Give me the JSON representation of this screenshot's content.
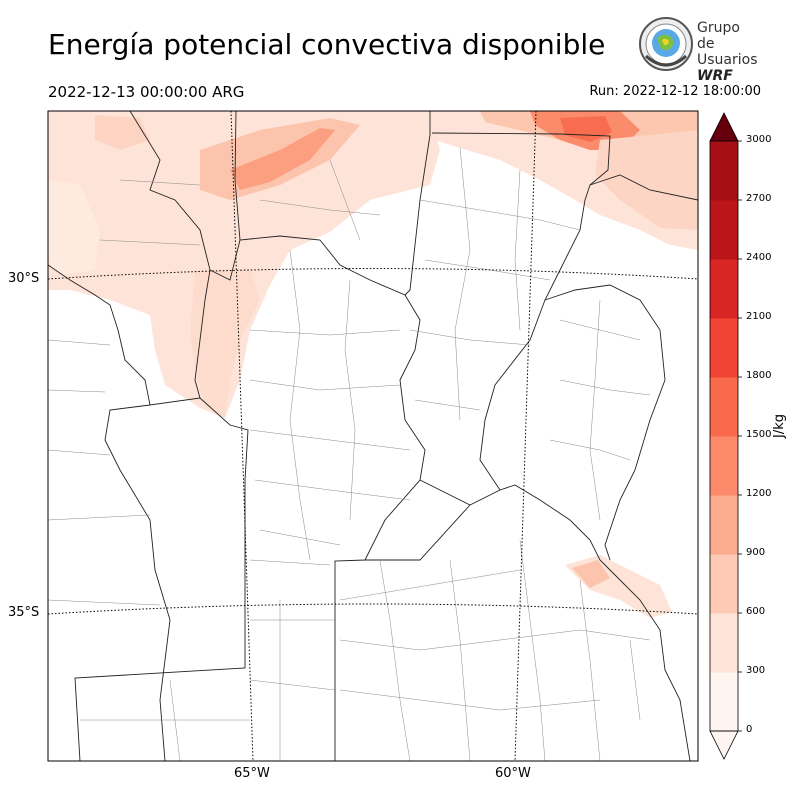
{
  "title": "Energía potencial convectiva disponible",
  "valid_time": "2022-12-13 00:00:00 ARG",
  "run_time": "Run: 2022-12-12 18:00:00",
  "logo": {
    "line1": "Grupo de",
    "line2": "Usuarios",
    "line3": "WRF"
  },
  "map": {
    "lat_labels": [
      "30°S",
      "35°S"
    ],
    "lon_labels": [
      "65°W",
      "60°W"
    ],
    "graticule": "dotted"
  },
  "colorbar": {
    "unit": "J/kg",
    "ticks": [
      "0",
      "300",
      "600",
      "900",
      "1200",
      "1500",
      "1800",
      "2100",
      "2400",
      "2700",
      "3000"
    ],
    "colors": [
      "#fff5f0",
      "#fee4d8",
      "#fdcab5",
      "#fcab8f",
      "#fc8a6a",
      "#f96a4d",
      "#f14432",
      "#d92523",
      "#bb151a",
      "#a50f15",
      "#7f0610"
    ],
    "extend": "both"
  }
}
